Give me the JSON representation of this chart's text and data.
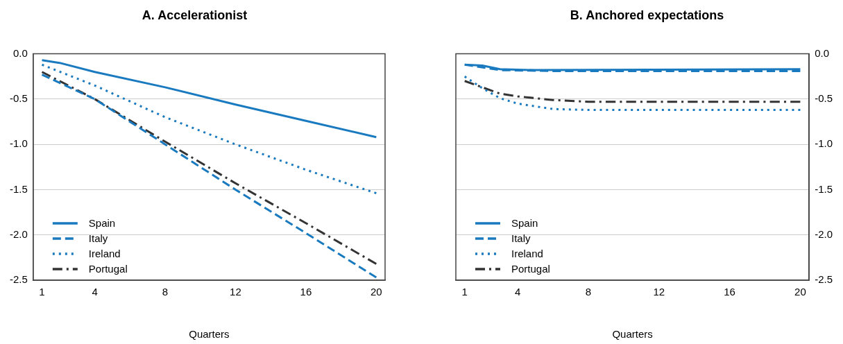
{
  "chart_data": [
    {
      "type": "line",
      "title": "A. Accelerationist",
      "xlabel": "Quarters",
      "xlim": [
        0.5,
        20.5
      ],
      "xticks": [
        1,
        4,
        8,
        12,
        16,
        20
      ],
      "ylim": [
        -2.5,
        0
      ],
      "yticks": [
        {
          "value": -2.5,
          "label": "-2.5"
        },
        {
          "value": -2,
          "label": "-2.0"
        },
        {
          "value": -1.5,
          "label": "-1.5"
        },
        {
          "value": -1,
          "label": "-1.0"
        },
        {
          "value": -0.5,
          "label": "-0.5"
        },
        {
          "value": 0,
          "label": "0.0"
        }
      ],
      "grid": "y",
      "legend": "bottom left",
      "series": [
        {
          "name": "Spain",
          "color": "#1a7abf",
          "line_style": "solid",
          "x": [
            1,
            2,
            4,
            8,
            12,
            16,
            20
          ],
          "values": [
            -0.07,
            -0.1,
            -0.2,
            -0.37,
            -0.56,
            -0.74,
            -0.92
          ]
        },
        {
          "name": "Italy",
          "color": "#1a7abf",
          "line_style": "dashed",
          "x": [
            1,
            4,
            8,
            12,
            16,
            20
          ],
          "values": [
            -0.23,
            -0.5,
            -1.0,
            -1.5,
            -1.98,
            -2.47
          ]
        },
        {
          "name": "Ireland",
          "color": "#1a7abf",
          "line_style": "dotted",
          "x": [
            1,
            4,
            8,
            12,
            16,
            20
          ],
          "values": [
            -0.12,
            -0.35,
            -0.7,
            -1.0,
            -1.28,
            -1.54
          ]
        },
        {
          "name": "Portugal",
          "color": "#333333",
          "line_style": "dashdot",
          "x": [
            1,
            3,
            4,
            8,
            12,
            16,
            20
          ],
          "values": [
            -0.2,
            -0.4,
            -0.5,
            -0.97,
            -1.43,
            -1.87,
            -2.32
          ]
        }
      ]
    },
    {
      "type": "line",
      "title": "B. Anchored expectations",
      "xlabel": "Quarters",
      "xlim": [
        0.5,
        20.5
      ],
      "xticks": [
        1,
        4,
        8,
        12,
        16,
        20
      ],
      "y2lim": [
        -2.5,
        0
      ],
      "y2ticks": [
        {
          "value": -2.5,
          "label": "-2.5"
        },
        {
          "value": -2,
          "label": "-2.0"
        },
        {
          "value": -1.5,
          "label": "-1.5"
        },
        {
          "value": -1,
          "label": "-1.0"
        },
        {
          "value": -0.5,
          "label": "-0.5"
        },
        {
          "value": 0,
          "label": "0.0"
        }
      ],
      "grid": "y",
      "legend": "bottom left",
      "series": [
        {
          "name": "Spain",
          "color": "#1a7abf",
          "line_style": "solid",
          "axis": "y2",
          "x": [
            1,
            2,
            3,
            5,
            20
          ],
          "values": [
            -0.12,
            -0.13,
            -0.17,
            -0.18,
            -0.17
          ]
        },
        {
          "name": "Italy",
          "color": "#1a7abf",
          "line_style": "dashed",
          "axis": "y2",
          "x": [
            1,
            3,
            6,
            20
          ],
          "values": [
            -0.12,
            -0.18,
            -0.19,
            -0.19
          ]
        },
        {
          "name": "Ireland",
          "color": "#1a7abf",
          "line_style": "dotted",
          "axis": "y2",
          "x": [
            1,
            2,
            3,
            4,
            6,
            8,
            20
          ],
          "values": [
            -0.25,
            -0.38,
            -0.49,
            -0.55,
            -0.61,
            -0.62,
            -0.62
          ]
        },
        {
          "name": "Portugal",
          "color": "#333333",
          "line_style": "dashdot",
          "axis": "y2",
          "x": [
            1,
            2,
            3,
            4,
            6,
            8,
            20
          ],
          "values": [
            -0.3,
            -0.37,
            -0.44,
            -0.47,
            -0.51,
            -0.53,
            -0.53
          ]
        }
      ]
    }
  ]
}
